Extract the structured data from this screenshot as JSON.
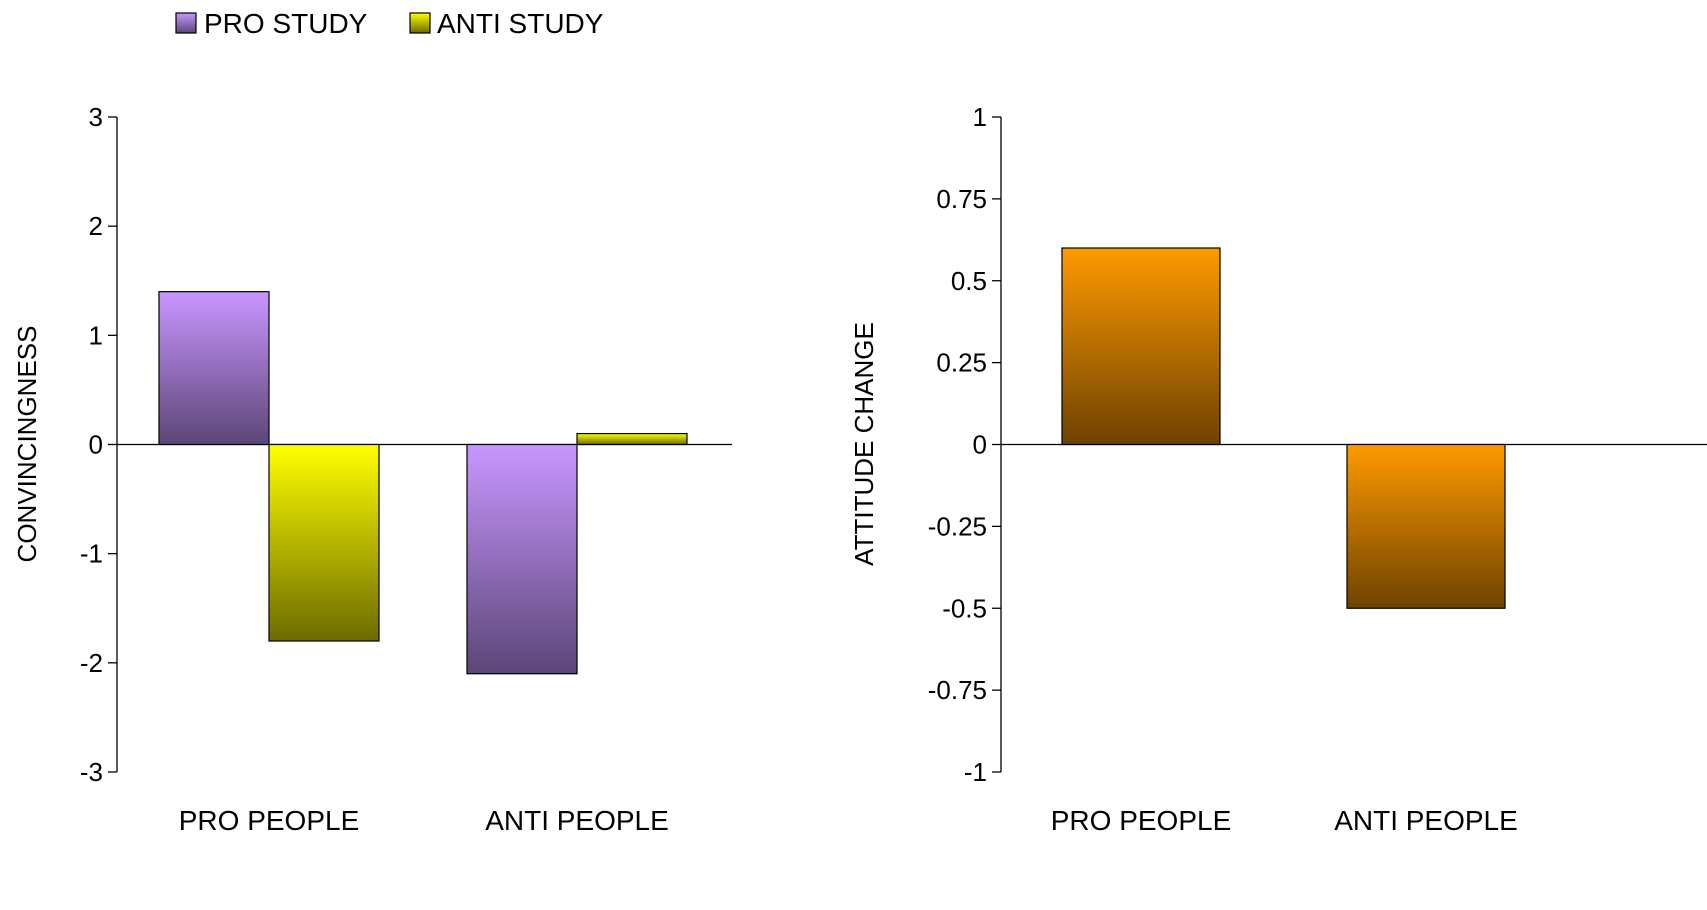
{
  "colors": {
    "pro_study": "#c896ff",
    "pro_study_dark": "#5c4677",
    "anti_study": "#ffff00",
    "anti_study_dark": "#6b6b00",
    "attitude": "#ff9a00",
    "attitude_dark": "#6e4200"
  },
  "legend": {
    "placement": "top-left",
    "items": [
      {
        "label": "PRO STUDY",
        "color_key": "pro_study"
      },
      {
        "label": "ANTI STUDY",
        "color_key": "anti_study"
      }
    ]
  },
  "chart_data": [
    {
      "type": "bar",
      "categories": [
        "PRO PEOPLE",
        "ANTI PEOPLE"
      ],
      "series": [
        {
          "name": "PRO STUDY",
          "values": [
            1.4,
            -2.1
          ]
        },
        {
          "name": "ANTI STUDY",
          "values": [
            -1.8,
            0.1
          ]
        }
      ],
      "ylabel": "CONVINCINGNESS",
      "ylim": [
        -3,
        3
      ],
      "yticks": [
        3,
        2,
        1,
        0,
        -1,
        -2,
        -3
      ],
      "ytick_labels": [
        "3",
        "2",
        "1",
        "0",
        "-1",
        "-2",
        "-3"
      ],
      "grid": false
    },
    {
      "type": "bar",
      "categories": [
        "PRO PEOPLE",
        "ANTI PEOPLE"
      ],
      "series": [
        {
          "values": [
            0.6,
            -0.5
          ]
        }
      ],
      "ylabel": "ATTITUDE CHANGE",
      "ylim": [
        -1,
        1
      ],
      "yticks": [
        1,
        0.75,
        0.5,
        0.25,
        0,
        -0.25,
        -0.5,
        -0.75,
        -1
      ],
      "ytick_labels": [
        "1",
        "0.75",
        "0.5",
        "0.25",
        "0",
        "-0.25",
        "-0.5",
        "-0.75",
        "-1"
      ],
      "grid": false
    }
  ]
}
